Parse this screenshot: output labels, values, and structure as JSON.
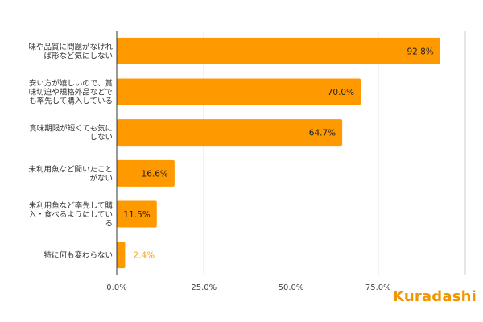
{
  "brand": {
    "first_letter": "K",
    "rest": "uradashi",
    "color": "#f29600"
  },
  "colors": {
    "bar": "#ff9900",
    "inside_label": "#222222",
    "outside_label": "#f5a623",
    "grid": "#cccccc",
    "axis": "#333333"
  },
  "chart_data": {
    "type": "bar",
    "orientation": "horizontal",
    "categories": [
      [
        "味や品質に問題がなけれ",
        "ば形など気にしない"
      ],
      [
        "安い方が嬉しいので、賞",
        "味切迫や規格外品などで",
        "も率先して購入している"
      ],
      [
        "賞味期限が短くても気に",
        "しない"
      ],
      [
        "未利用魚など聞いたこと",
        "がない"
      ],
      [
        "未利用魚など率先して購",
        "入・食べるようにしてい",
        "る"
      ],
      [
        "特に何も変わらない"
      ]
    ],
    "values": [
      92.8,
      70.0,
      64.7,
      16.6,
      11.5,
      2.4
    ],
    "value_labels": [
      "92.8%",
      "70.0%",
      "64.7%",
      "16.6%",
      "11.5%",
      "2.4%"
    ],
    "x_ticks": [
      "0.0%",
      "25.0%",
      "50.0%",
      "75.0%"
    ],
    "xlim": [
      0,
      100
    ],
    "grid": true,
    "legend": "none"
  }
}
